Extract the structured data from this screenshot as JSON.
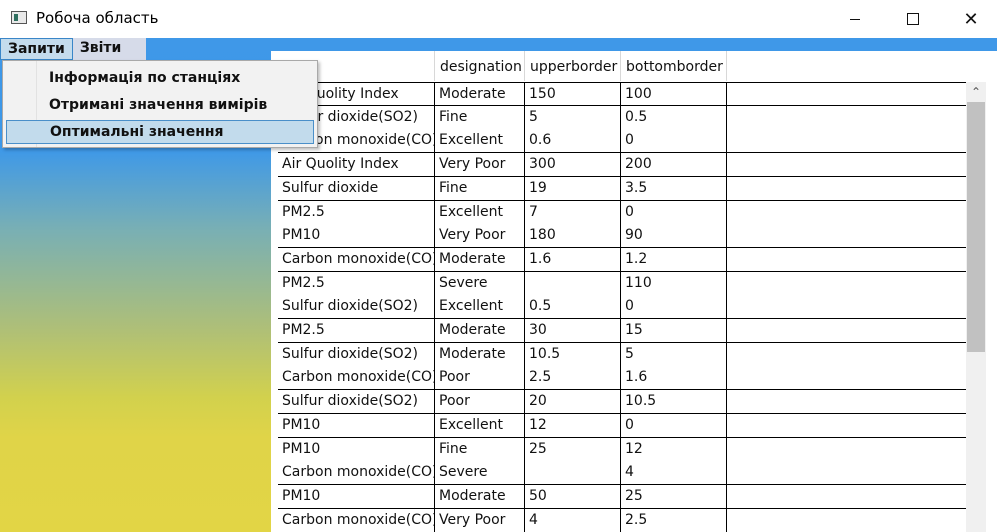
{
  "window": {
    "title": "Робоча область",
    "controls": {
      "minimize": "",
      "maximize": "",
      "close": "✕"
    }
  },
  "menubar": {
    "items": [
      {
        "label": "Запити",
        "open": true
      },
      {
        "label": "Звіти",
        "open": false
      }
    ]
  },
  "dropdown": {
    "items": [
      {
        "label": "Інформація по станціях"
      },
      {
        "label": "Отримані значення вимірів"
      },
      {
        "label": "Оптимальні значення",
        "highlighted": true
      }
    ]
  },
  "grid": {
    "columns": [
      "",
      "designation",
      "upperborder",
      "bottomborder"
    ],
    "rows": [
      [
        "Air Quolity Index",
        "Moderate",
        "150",
        "100"
      ],
      [
        "Sulfur dioxide(SO2)",
        "Fine",
        "5",
        "0.5"
      ],
      [
        "Carbon monoxide(CO)",
        "Excellent",
        "0.6",
        "0"
      ],
      [
        "Air Quolity Index",
        "Very Poor",
        "300",
        "200"
      ],
      [
        "Sulfur dioxide",
        "Fine",
        "19",
        "3.5"
      ],
      [
        "PM2.5",
        "Excellent",
        "7",
        "0"
      ],
      [
        "PM10",
        "Very Poor",
        "180",
        "90"
      ],
      [
        "Carbon monoxide(CO)",
        "Moderate",
        "1.6",
        "1.2"
      ],
      [
        "PM2.5",
        "Severe",
        "",
        "110"
      ],
      [
        "Sulfur dioxide(SO2)",
        "Excellent",
        "0.5",
        "0"
      ],
      [
        "PM2.5",
        "Moderate",
        "30",
        "15"
      ],
      [
        "Sulfur dioxide(SO2)",
        "Moderate",
        "10.5",
        "5"
      ],
      [
        "Carbon monoxide(CO)",
        "Poor",
        "2.5",
        "1.6"
      ],
      [
        "Sulfur dioxide(SO2)",
        "Poor",
        "20",
        "10.5"
      ],
      [
        "PM10",
        "Excellent",
        "12",
        "0"
      ],
      [
        "PM10",
        "Fine",
        "25",
        "12"
      ],
      [
        "Carbon monoxide(CO)",
        "Severe",
        "",
        "4"
      ],
      [
        "PM10",
        "Moderate",
        "50",
        "25"
      ],
      [
        "Carbon monoxide(CO)",
        "Very Poor",
        "4",
        "2.5"
      ]
    ]
  },
  "scrollbar": {
    "up_arrow": "⌃"
  },
  "colors": {
    "gradient_top": "#3d98e9",
    "gradient_bottom": "#e2d545",
    "menu_highlight": "#c2dbec",
    "menu_highlight_border": "#4a8fc9"
  }
}
